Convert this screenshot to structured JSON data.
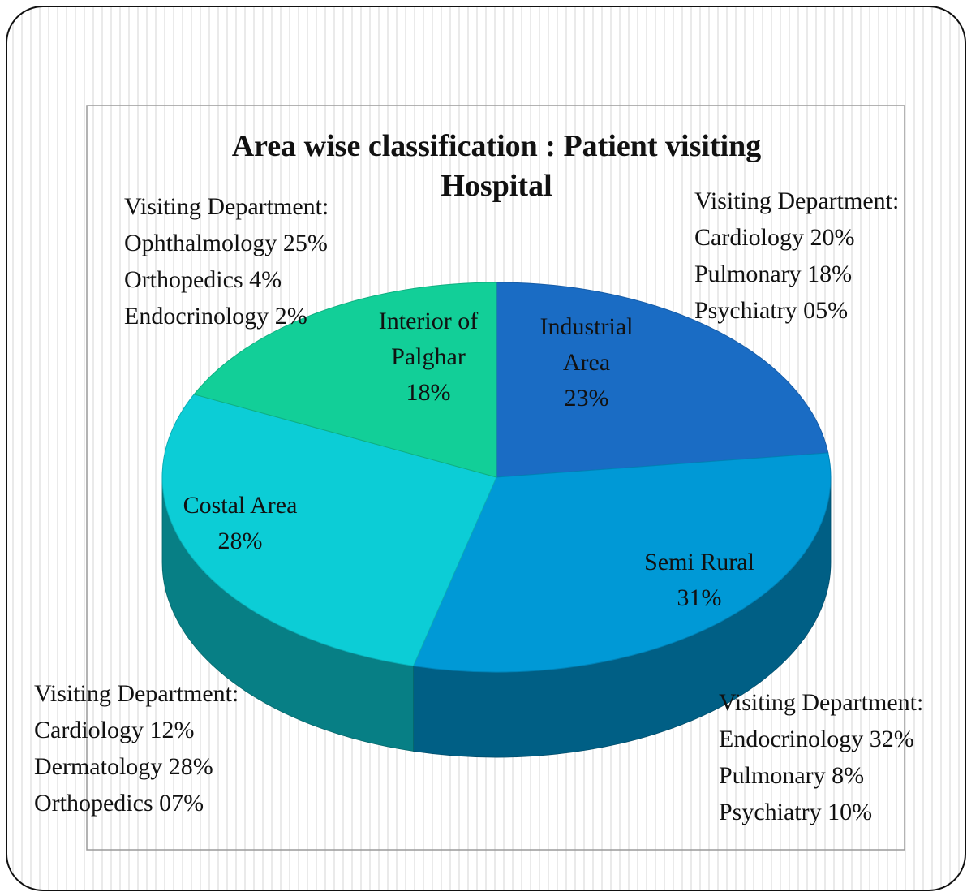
{
  "chart_data": {
    "type": "pie",
    "title": "Area wise classification : Patient visiting Hospital",
    "categories": [
      "Industrial Area",
      "Semi Rural",
      "Costal Area",
      "Interior of Palghar"
    ],
    "values": [
      23,
      31,
      28,
      18
    ],
    "value_labels": [
      "23%",
      "31%",
      "28%",
      "18%"
    ],
    "colors": [
      "#1a6cc4",
      "#0099d6",
      "#0ccdd6",
      "#12cf98"
    ],
    "annotations": [
      {
        "title": "Visiting Department:",
        "items": [
          "Cardiology 20%",
          "Pulmonary 18%",
          "Psychiatry 05%"
        ]
      },
      {
        "title": "Visiting Department:",
        "items": [
          "Endocrinology 32%",
          "Pulmonary 8%",
          "Psychiatry 10%"
        ]
      },
      {
        "title": "Visiting Department:",
        "items": [
          "Cardiology 12%",
          "Dermatology 28%",
          "Orthopedics 07%"
        ]
      },
      {
        "title": "Visiting Department:",
        "items": [
          "Ophthalmology 25%",
          "Orthopedics 4%",
          "Endocrinology 2%"
        ]
      }
    ]
  }
}
